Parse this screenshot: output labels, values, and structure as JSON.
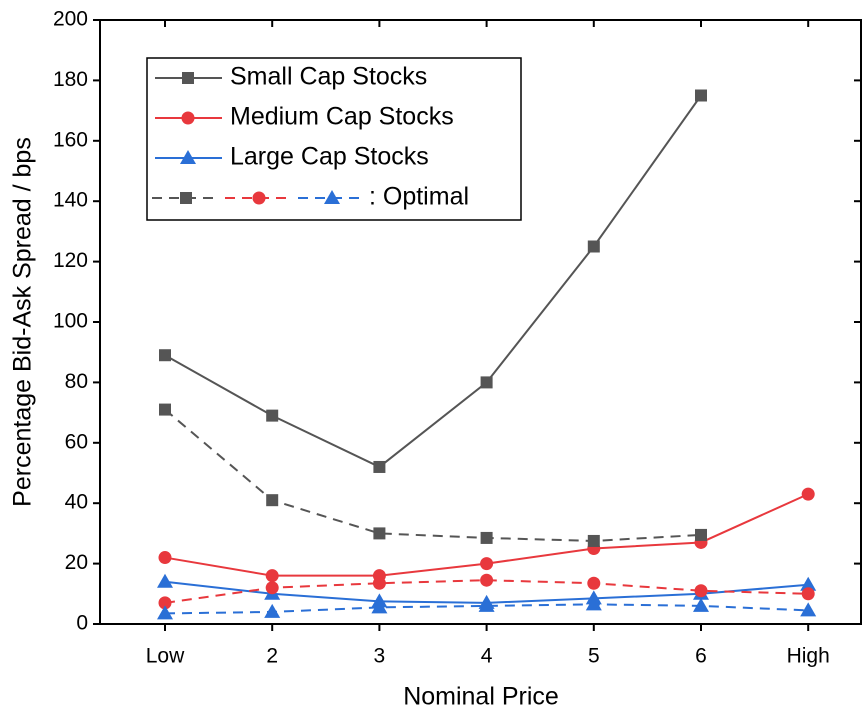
{
  "chart_data": {
    "type": "line",
    "x_label": "Nominal Price",
    "y_label": "Percentage Bid-Ask Spread / bps",
    "categories": [
      "Low",
      "2",
      "3",
      "4",
      "5",
      "6",
      "High"
    ],
    "ylim": [
      0,
      200
    ],
    "yticks": [
      0,
      20,
      40,
      60,
      80,
      100,
      120,
      140,
      160,
      180,
      200
    ],
    "legend_position": "upper left",
    "optimal_label": ": Optimal",
    "series": [
      {
        "name": "Small Cap Stocks",
        "color": "#555555",
        "marker": "square",
        "values": [
          89,
          69,
          52,
          80,
          125,
          175,
          null
        ]
      },
      {
        "name": "Medium Cap Stocks",
        "color": "#e8383d",
        "marker": "circle",
        "values": [
          22,
          16,
          16,
          20,
          25,
          27,
          43
        ]
      },
      {
        "name": "Large Cap Stocks",
        "color": "#2a6fd6",
        "marker": "triangle",
        "values": [
          14,
          10,
          7.5,
          7,
          8.5,
          10,
          13
        ]
      },
      {
        "color": "#555555",
        "marker": "square",
        "dashed": true,
        "values": [
          71,
          41,
          30,
          28.5,
          27.5,
          29.5,
          null
        ]
      },
      {
        "color": "#e8383d",
        "marker": "circle",
        "dashed": true,
        "values": [
          7,
          12,
          13.5,
          14.5,
          13.5,
          11,
          10
        ]
      },
      {
        "color": "#2a6fd6",
        "marker": "triangle",
        "dashed": true,
        "values": [
          3.5,
          4,
          5.5,
          6,
          6.5,
          6,
          4.5
        ]
      }
    ]
  }
}
